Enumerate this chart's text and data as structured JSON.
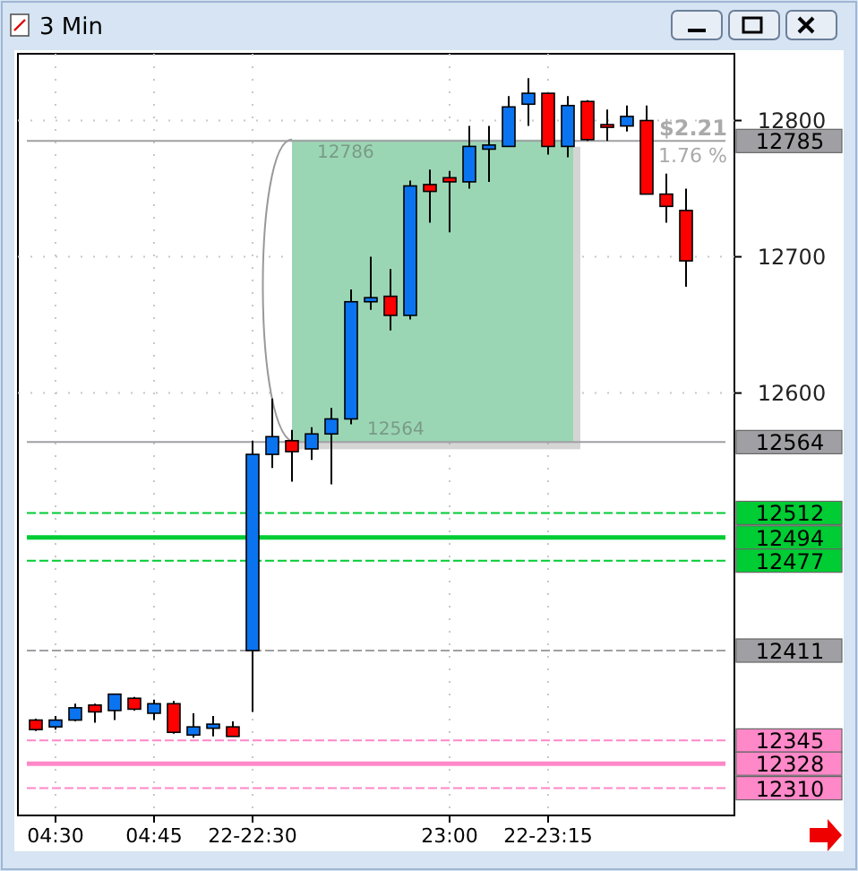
{
  "chart_data": {
    "type": "candlestick",
    "title": "3 Min",
    "categories": [
      null,
      "04:30",
      null,
      null,
      null,
      null,
      "04:45",
      null,
      null,
      null,
      null,
      "22-22:30",
      null,
      null,
      null,
      null,
      null,
      null,
      null,
      null,
      null,
      "23:00",
      null,
      null,
      null,
      null,
      "22-23:15",
      null,
      null,
      null,
      null,
      null,
      null,
      null
    ],
    "ohlc": [
      [
        12360,
        12361,
        12352,
        12353
      ],
      [
        12355,
        12363,
        12353,
        12360
      ],
      [
        12360,
        12372,
        12359,
        12369
      ],
      [
        12371,
        12372,
        12358,
        12366
      ],
      [
        12367,
        12379,
        12360,
        12379
      ],
      [
        12376,
        12377,
        12367,
        12368
      ],
      [
        12365,
        12375,
        12360,
        12372
      ],
      [
        12372,
        12374,
        12350,
        12351
      ],
      [
        12349,
        12365,
        12347,
        12355
      ],
      [
        12354,
        12363,
        12348,
        12357
      ],
      [
        12355,
        12359,
        12348,
        12348
      ],
      [
        12411,
        12565,
        12366,
        12555
      ],
      [
        12555,
        12596,
        12545,
        12568
      ],
      [
        12565,
        12573,
        12535,
        12557
      ],
      [
        12559,
        12575,
        12551,
        12570
      ],
      [
        12570,
        12589,
        12533,
        12581
      ],
      [
        12581,
        12676,
        12577,
        12667
      ],
      [
        12667,
        12700,
        12661,
        12670
      ],
      [
        12671,
        12691,
        12646,
        12657
      ],
      [
        12657,
        12756,
        12654,
        12752
      ],
      [
        12753,
        12764,
        12725,
        12748
      ],
      [
        12758,
        12763,
        12718,
        12755
      ],
      [
        12755,
        12796,
        12750,
        12781
      ],
      [
        12779,
        12796,
        12755,
        12782
      ],
      [
        12781,
        12818,
        12781,
        12810
      ],
      [
        12812,
        12831,
        12796,
        12820
      ],
      [
        12820,
        12820,
        12775,
        12781
      ],
      [
        12781,
        12818,
        12773,
        12811
      ],
      [
        12814,
        12815,
        12785,
        12786
      ],
      [
        12797,
        12808,
        12785,
        12796
      ],
      [
        12796,
        12811,
        12792,
        12803
      ],
      [
        12800,
        12811,
        12746,
        12746
      ],
      [
        12746,
        12761,
        12725,
        12737
      ],
      [
        12734,
        12750,
        12678,
        12697
      ]
    ],
    "colors": [
      "#ff0000",
      "#0a74f0",
      "#0a74f0",
      "#ff0000",
      "#0a74f0",
      "#ff0000",
      "#0a74f0",
      "#ff0000",
      "#0a74f0",
      "#0a74f0",
      "#ff0000",
      "#0a74f0",
      "#0a74f0",
      "#ff0000",
      "#0a74f0",
      "#0a74f0",
      "#0a74f0",
      "#0a74f0",
      "#ff0000",
      "#0a74f0",
      "#ff0000",
      "#ff0000",
      "#0a74f0",
      "#0a74f0",
      "#0a74f0",
      "#0a74f0",
      "#ff0000",
      "#0a74f0",
      "#ff0000",
      "#ff0000",
      "#0a74f0",
      "#ff0000",
      "#ff0000",
      "#ff0000"
    ],
    "ylim": [
      12290,
      12849
    ],
    "yticks": [
      12600,
      12700,
      12800
    ],
    "grid": true,
    "ref_lines": [
      {
        "axis": "y",
        "value": 12785,
        "label": "12785",
        "color": "#a0a0a4",
        "line_style": "solid"
      },
      {
        "axis": "y",
        "value": 12564,
        "label": "12564",
        "color": "#a0a0a4",
        "line_style": "solid"
      },
      {
        "axis": "y",
        "value": 12512,
        "label": "12512",
        "color": "#00cc33",
        "line_style": "dashed"
      },
      {
        "axis": "y",
        "value": 12494,
        "label": "12494",
        "color": "#00cc33",
        "line_style": "solid"
      },
      {
        "axis": "y",
        "value": 12477,
        "label": "12477",
        "color": "#00cc33",
        "line_style": "dashed"
      },
      {
        "axis": "y",
        "value": 12411,
        "label": "12411",
        "color": "#a0a0a4",
        "line_style": "dashed"
      },
      {
        "axis": "y",
        "value": 12345,
        "label": "12345",
        "color": "#ff88c8",
        "line_style": "dashed"
      },
      {
        "axis": "y",
        "value": 12328,
        "label": "12328",
        "color": "#ff88c8",
        "line_style": "solid"
      },
      {
        "axis": "y",
        "value": 12310,
        "label": "12310",
        "color": "#ff88c8",
        "line_style": "dashed"
      }
    ],
    "annotations": [
      {
        "text": "12786",
        "y": 12786
      },
      {
        "text": "12564",
        "y": 12564
      },
      "$2.21",
      "1.76 %"
    ]
  }
}
